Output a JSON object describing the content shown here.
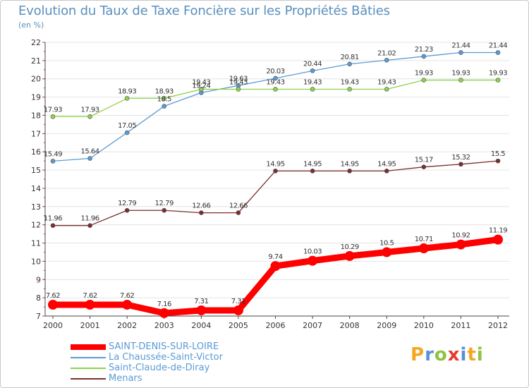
{
  "header": {
    "title": "Evolution du Taux de Taxe Foncière sur les Propriétés Bâties",
    "subtitle": "(en %)"
  },
  "logo": {
    "text": "Proxiti",
    "colors": [
      "#f5a623",
      "#5b8fd6",
      "#8bc43f",
      "#e53a2f",
      "#5b8fd6",
      "#f5a623",
      "#8bc43f"
    ]
  },
  "chart_data": {
    "type": "line",
    "categories": [
      "2000",
      "2001",
      "2002",
      "2003",
      "2004",
      "2005",
      "2006",
      "2007",
      "2008",
      "2009",
      "2010",
      "2011",
      "2012"
    ],
    "ylim": [
      7,
      22
    ],
    "yticks": [
      7,
      8,
      9,
      10,
      11,
      12,
      13,
      14,
      15,
      16,
      17,
      18,
      19,
      20,
      21,
      22
    ],
    "grid": "horizontal",
    "legend_position": "bottom",
    "series": [
      {
        "name": "SAINT-DENIS-SUR-LOIRE",
        "color": "#ff0000",
        "values": [
          7.62,
          7.62,
          7.62,
          7.16,
          7.31,
          7.31,
          9.74,
          10.03,
          10.29,
          10.5,
          10.71,
          10.92,
          11.19
        ],
        "labels": [
          "7.62",
          "7.62",
          "7.62",
          "7.16",
          "7.31",
          "7.31",
          "9.74",
          "10.03",
          "10.29",
          "10.5",
          "10.71",
          "10.92",
          "11.19"
        ],
        "bold": true
      },
      {
        "name": "La Chaussée-Saint-Victor",
        "color": "#5b9bd5",
        "values": [
          15.49,
          15.64,
          17.05,
          18.5,
          19.24,
          19.63,
          20.03,
          20.44,
          20.81,
          21.02,
          21.23,
          21.44,
          21.44
        ],
        "labels": [
          "15.49",
          "15.64",
          "17.05",
          "18.5",
          "19.24",
          "19.63",
          "20.03",
          "20.44",
          "20.81",
          "21.02",
          "21.23",
          "21.44",
          "21.44"
        ]
      },
      {
        "name": "Saint-Claude-de-Diray",
        "color": "#8ed14b",
        "values": [
          17.93,
          17.93,
          18.93,
          18.93,
          19.43,
          19.43,
          19.43,
          19.43,
          19.43,
          19.43,
          19.93,
          19.93,
          19.93
        ],
        "labels": [
          "17.93",
          "17.93",
          "18.93",
          "18.93",
          "19.43",
          "19.43",
          "19.43",
          "19.43",
          "19.43",
          "19.43",
          "19.93",
          "19.93",
          "19.93"
        ]
      },
      {
        "name": "Menars",
        "color": "#7a2e2e",
        "values": [
          11.96,
          11.96,
          12.79,
          12.79,
          12.66,
          12.66,
          14.95,
          14.95,
          14.95,
          14.95,
          15.17,
          15.32,
          15.5
        ],
        "labels": [
          "11.96",
          "11.96",
          "12.79",
          "12.79",
          "12.66",
          "12.66",
          "14.95",
          "14.95",
          "14.95",
          "14.95",
          "15.17",
          "15.32",
          "15.5"
        ]
      }
    ]
  }
}
